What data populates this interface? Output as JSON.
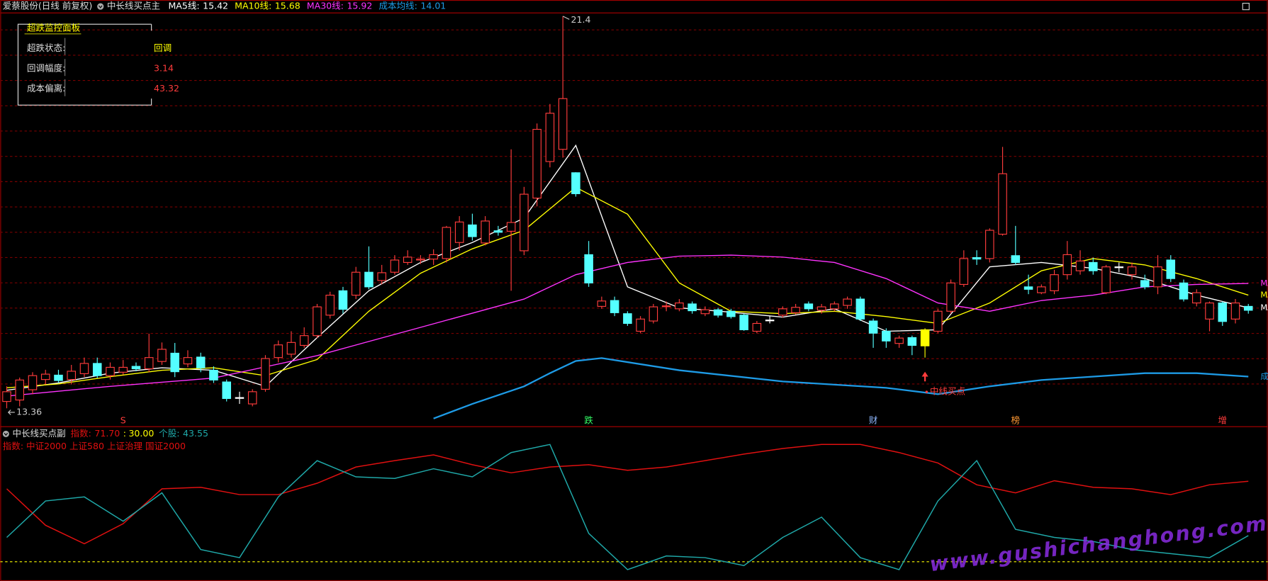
{
  "header": {
    "stock": "爱蔡股份(日线 前复权)",
    "indicator": "中长线买点主"
  },
  "panel": {
    "title": "超跌监控面板",
    "rows": [
      {
        "label": "超跌状态:",
        "value": "回调"
      },
      {
        "label": "回调幅度:",
        "value": 3.14
      },
      {
        "label": "成本偏离:",
        "value": 43.32
      }
    ]
  },
  "watermark": "www.gushichanghong.com",
  "chart_data": [
    {
      "type": "candlestick",
      "ylim": [
        13.0,
        21.5
      ],
      "grid": true,
      "up_color": "#ff3c3c",
      "down_color": "#54ffff",
      "flat_color": "#ffffff",
      "highlight": {
        "index": 71,
        "color": "#ffff00"
      },
      "open": [
        13.5,
        13.53,
        13.74,
        13.95,
        14.04,
        13.95,
        14.07,
        14.28,
        14.03,
        14.1,
        14.22,
        14.17,
        14.32,
        14.49,
        14.27,
        14.41,
        14.14,
        13.9,
        13.58,
        13.45,
        13.75,
        14.4,
        14.47,
        14.65,
        14.85,
        15.27,
        15.77,
        15.68,
        16.15,
        15.98,
        16.15,
        16.35,
        16.4,
        16.42,
        16.43,
        16.76,
        17.12,
        16.75,
        17.0,
        16.99,
        16.59,
        17.67,
        18.42,
        18.67,
        18.19,
        16.51,
        15.45,
        15.57,
        15.3,
        14.94,
        15.15,
        15.45,
        15.4,
        15.5,
        15.3,
        15.38,
        15.35,
        15.27,
        14.94,
        15.17,
        15.27,
        15.32,
        15.5,
        15.37,
        15.4,
        15.47,
        15.6,
        15.15,
        14.94,
        14.69,
        14.81,
        14.97,
        14.94,
        15.35,
        15.9,
        16.45,
        16.43,
        16.93,
        16.49,
        15.85,
        15.73,
        15.77,
        16.1,
        16.18,
        16.35,
        15.73,
        16.26,
        16.1,
        15.98,
        15.85,
        16.4,
        15.93,
        15.52,
        15.19,
        15.52,
        15.19,
        15.45
      ],
      "close": [
        13.7,
        13.94,
        14.03,
        14.06,
        13.93,
        14.12,
        14.28,
        14.03,
        14.2,
        14.2,
        14.17,
        14.4,
        14.57,
        14.11,
        14.4,
        14.19,
        13.94,
        13.56,
        13.58,
        13.7,
        14.38,
        14.66,
        14.71,
        14.85,
        15.44,
        15.68,
        15.39,
        16.15,
        15.85,
        16.14,
        16.4,
        16.46,
        16.42,
        16.51,
        17.07,
        17.18,
        16.88,
        17.2,
        16.97,
        17.17,
        17.75,
        19.08,
        19.41,
        19.71,
        17.76,
        15.93,
        15.56,
        15.32,
        15.1,
        15.19,
        15.44,
        15.46,
        15.52,
        15.36,
        15.38,
        15.27,
        15.24,
        14.97,
        15.1,
        15.17,
        15.4,
        15.43,
        15.4,
        15.44,
        15.5,
        15.6,
        15.19,
        14.9,
        14.74,
        14.8,
        14.65,
        14.64,
        15.35,
        15.93,
        16.43,
        16.42,
        17.01,
        18.17,
        16.35,
        15.8,
        15.85,
        16.1,
        16.51,
        16.38,
        16.18,
        16.26,
        16.26,
        16.26,
        15.85,
        16.26,
        16.02,
        15.6,
        15.73,
        15.52,
        15.14,
        15.52,
        15.37
      ],
      "high": [
        13.81,
        13.99,
        14.1,
        14.15,
        14.15,
        14.25,
        14.4,
        14.4,
        14.3,
        14.35,
        14.3,
        14.89,
        14.71,
        14.7,
        14.55,
        14.5,
        14.22,
        13.95,
        13.7,
        13.75,
        14.45,
        14.75,
        14.94,
        15.02,
        15.5,
        15.75,
        15.85,
        16.26,
        16.68,
        16.3,
        16.5,
        16.6,
        16.5,
        16.62,
        17.1,
        17.3,
        17.35,
        17.3,
        17.1,
        18.67,
        17.9,
        19.2,
        19.6,
        21.4,
        18.2,
        16.79,
        15.65,
        15.65,
        15.35,
        15.25,
        15.5,
        15.55,
        15.6,
        15.55,
        15.45,
        15.42,
        15.4,
        15.3,
        15.15,
        15.25,
        15.45,
        15.5,
        15.55,
        15.5,
        15.55,
        15.65,
        15.65,
        15.2,
        15.0,
        14.85,
        14.85,
        15.0,
        15.4,
        16.0,
        16.6,
        16.6,
        17.05,
        18.72,
        17.1,
        16.1,
        15.9,
        16.2,
        16.79,
        16.6,
        16.45,
        16.3,
        16.35,
        16.35,
        16.1,
        16.5,
        16.5,
        16.0,
        15.8,
        15.55,
        15.55,
        15.6,
        15.5
      ],
      "low": [
        13.36,
        13.4,
        13.65,
        13.85,
        13.88,
        13.85,
        14.0,
        13.98,
        13.95,
        14.05,
        14.12,
        14.1,
        14.25,
        14.0,
        14.2,
        14.1,
        13.88,
        13.5,
        13.45,
        13.4,
        13.7,
        14.3,
        14.4,
        14.6,
        14.8,
        15.2,
        15.3,
        15.6,
        15.8,
        15.9,
        16.1,
        16.3,
        16.32,
        16.3,
        16.35,
        16.6,
        16.8,
        16.7,
        16.9,
        15.77,
        16.5,
        17.5,
        18.3,
        18.5,
        17.7,
        15.85,
        15.4,
        15.25,
        15.05,
        14.9,
        15.1,
        15.35,
        15.35,
        15.3,
        15.25,
        15.22,
        15.2,
        14.95,
        14.9,
        15.1,
        15.22,
        15.28,
        15.35,
        15.3,
        15.35,
        15.4,
        15.15,
        14.6,
        14.6,
        14.6,
        14.45,
        14.4,
        14.9,
        15.3,
        15.85,
        16.3,
        16.35,
        16.9,
        16.3,
        15.7,
        15.7,
        15.7,
        16.0,
        16.1,
        16.1,
        15.7,
        16.15,
        16.0,
        15.8,
        15.7,
        15.95,
        15.55,
        15.45,
        14.94,
        15.05,
        15.1,
        15.3
      ],
      "series": [
        {
          "name": "MA5线:",
          "color": "#ffffff",
          "x": [
            0,
            4,
            8,
            12,
            16,
            20,
            24,
            28,
            32,
            36,
            40,
            44,
            48,
            52,
            56,
            60,
            64,
            68,
            72,
            76,
            80,
            84,
            88,
            92,
            96
          ],
          "values": [
            13.73,
            13.88,
            14.08,
            14.19,
            14.14,
            13.81,
            14.81,
            15.77,
            16.35,
            16.76,
            17.26,
            18.75,
            15.85,
            15.42,
            15.33,
            15.23,
            15.4,
            14.94,
            14.97,
            16.26,
            16.35,
            16.23,
            16.02,
            15.68,
            15.42
          ]
        },
        {
          "name": "MA10线:",
          "color": "#ffff00",
          "x": [
            0,
            4,
            8,
            12,
            16,
            20,
            24,
            28,
            32,
            36,
            40,
            44,
            48,
            52,
            56,
            60,
            64,
            68,
            72,
            76,
            80,
            84,
            88,
            92,
            96
          ],
          "values": [
            13.78,
            13.86,
            14.01,
            14.14,
            14.19,
            14.03,
            14.36,
            15.35,
            16.13,
            16.63,
            17.01,
            17.89,
            17.34,
            15.93,
            15.35,
            15.3,
            15.35,
            15.24,
            15.1,
            15.52,
            16.18,
            16.43,
            16.3,
            16.02,
            15.68
          ]
        },
        {
          "name": "MA30线:",
          "color": "#ff33ff",
          "x": [
            0,
            8,
            16,
            24,
            32,
            40,
            44,
            48,
            52,
            56,
            60,
            64,
            68,
            72,
            76,
            80,
            84,
            88,
            92,
            96
          ],
          "values": [
            13.61,
            13.81,
            13.98,
            14.44,
            15.02,
            15.6,
            16.1,
            16.35,
            16.48,
            16.5,
            16.46,
            16.35,
            16.02,
            15.52,
            15.35,
            15.57,
            15.68,
            15.85,
            15.9,
            15.92
          ]
        },
        {
          "name": "成本均线:",
          "color": "#1e9be6",
          "x": [
            33,
            36,
            40,
            42,
            44,
            46,
            52,
            60,
            68,
            72,
            76,
            80,
            88,
            92,
            96
          ],
          "values": [
            13.15,
            13.45,
            13.81,
            14.08,
            14.33,
            14.39,
            14.14,
            13.91,
            13.78,
            13.65,
            13.81,
            13.94,
            14.08,
            14.08,
            14.01
          ]
        }
      ],
      "annotations": [
        {
          "index": 71,
          "text": "中线买点",
          "color": "#ff3c3c"
        }
      ],
      "events": [
        {
          "index": 9,
          "label": "S",
          "color": "#ff3c3c"
        },
        {
          "index": 45,
          "label": "跌",
          "color": "#33ff66"
        },
        {
          "index": 67,
          "label": "财",
          "color": "#8fb8ff"
        },
        {
          "index": 78,
          "label": "榜",
          "color": "#ff9933"
        },
        {
          "index": 94,
          "label": "增",
          "color": "#ff3c3c"
        }
      ]
    },
    {
      "type": "line",
      "title": "中长线买点副",
      "subtitle": "指数: 中证2000 上证580 上证治理 国证2000",
      "ylim": [
        20,
        95
      ],
      "threshold": {
        "value": 30,
        "label": "30.00",
        "prefix": ":",
        "color": "#ffff00"
      },
      "series": [
        {
          "name": "指数:",
          "color": "#e01010",
          "x": [
            0,
            3,
            6,
            9,
            12,
            15,
            18,
            21,
            24,
            27,
            30,
            33,
            36,
            39,
            42,
            45,
            48,
            51,
            54,
            57,
            60,
            63,
            66,
            69,
            72,
            75,
            78,
            81,
            84,
            87,
            90,
            93,
            96
          ],
          "values": [
            67.8,
            48.9,
            39.3,
            49.7,
            67.8,
            68.6,
            64.8,
            64.8,
            70.7,
            79.1,
            82.4,
            85.4,
            80.3,
            76.1,
            79.1,
            80.3,
            77.4,
            79.1,
            82.4,
            85.8,
            88.7,
            90.8,
            90.8,
            86.6,
            81.2,
            69.9,
            65.7,
            72.0,
            68.6,
            67.8,
            64.8,
            69.9,
            71.7
          ],
          "value_labels": [
            null,
            null,
            null,
            null,
            null,
            null,
            null,
            null,
            null,
            null,
            null,
            null,
            null,
            null,
            null,
            null,
            null,
            null,
            null,
            null,
            null,
            null,
            null,
            null,
            null,
            null,
            null,
            null,
            null,
            null,
            null,
            null,
            "71.70"
          ]
        },
        {
          "name": "个股:",
          "color": "#1fa8a8",
          "x": [
            0,
            3,
            6,
            9,
            12,
            15,
            18,
            21,
            24,
            27,
            30,
            33,
            36,
            39,
            42,
            45,
            48,
            51,
            54,
            57,
            60,
            63,
            66,
            69,
            72,
            75,
            78,
            81,
            84,
            87,
            90,
            93,
            96
          ],
          "values": [
            42.6,
            61.5,
            63.6,
            51.0,
            65.7,
            36.3,
            32.1,
            63.6,
            82.4,
            74.0,
            73.2,
            78.2,
            74.0,
            86.6,
            90.8,
            44.7,
            25.9,
            33.0,
            32.1,
            28.0,
            42.6,
            53.1,
            32.1,
            25.9,
            61.5,
            82.4,
            46.8,
            42.6,
            40.5,
            36.3,
            34.2,
            32.1,
            43.55
          ]
        }
      ]
    }
  ]
}
